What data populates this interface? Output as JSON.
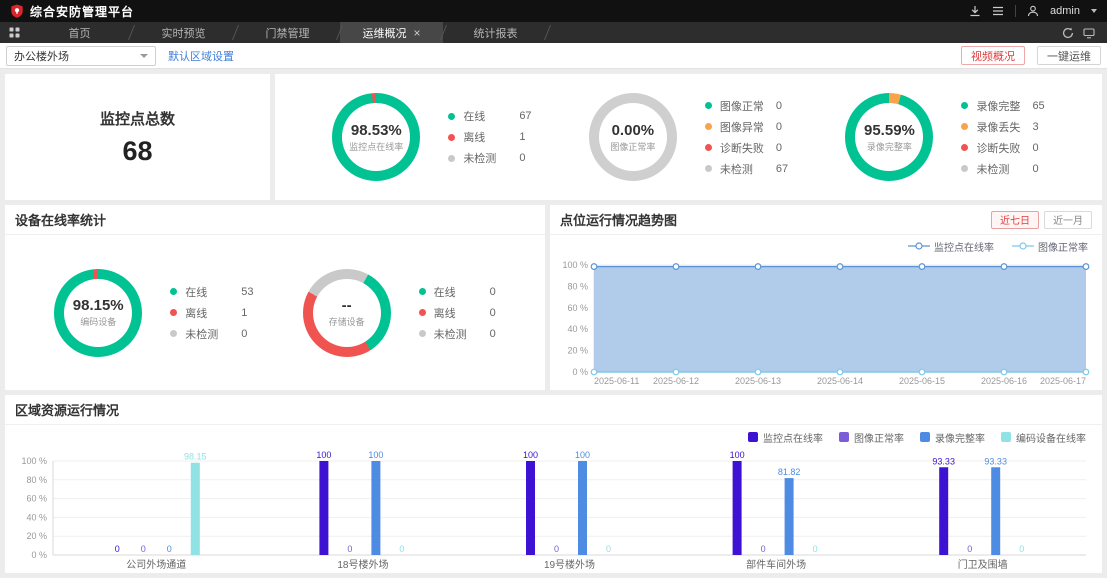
{
  "app": {
    "title": "综合安防管理平台",
    "user": "admin"
  },
  "tabbar": {
    "tabs": [
      {
        "id": "home",
        "label": "首页",
        "active": false,
        "closable": false
      },
      {
        "id": "live-preview",
        "label": "实时预览",
        "active": false,
        "closable": false
      },
      {
        "id": "access-control",
        "label": "门禁管理",
        "active": false,
        "closable": false
      },
      {
        "id": "ops-overview",
        "label": "运维概况",
        "active": true,
        "closable": true
      },
      {
        "id": "stats-report",
        "label": "统计报表",
        "active": false,
        "closable": false
      }
    ]
  },
  "toolbar": {
    "area_select": "办公楼外场",
    "default_area_link": "默认区域设置",
    "video_overview_button": "视频概况",
    "one_key_ops_button": "一键运维"
  },
  "summary": {
    "total_label": "监控点总数",
    "total_value": "68"
  },
  "colors": {
    "green": "#00C292",
    "red": "#F05450",
    "orange": "#F8A44C",
    "gray": "#C9C9C9",
    "accent_red": "#E23C3C",
    "link_blue": "#3D7EDB"
  },
  "overview_donuts": [
    {
      "id": "monitor-online-rate",
      "percent": "98.53%",
      "label": "监控点在线率",
      "segments": [
        {
          "color": "#00C292",
          "pct": 98.53
        },
        {
          "color": "#F05450",
          "pct": 1.47
        }
      ],
      "legend": [
        {
          "dot": "#00C292",
          "label": "在线",
          "value": "67"
        },
        {
          "dot": "#F05450",
          "label": "离线",
          "value": "1"
        },
        {
          "dot": "#C9C9C9",
          "label": "未检测",
          "value": "0"
        }
      ]
    },
    {
      "id": "image-normal-rate",
      "percent": "0.00%",
      "label": "图像正常率",
      "segments": [
        {
          "color": "#CFCFCF",
          "pct": 100
        }
      ],
      "legend": [
        {
          "dot": "#00C292",
          "label": "图像正常",
          "value": "0"
        },
        {
          "dot": "#F8A44C",
          "label": "图像异常",
          "value": "0"
        },
        {
          "dot": "#F05450",
          "label": "诊断失败",
          "value": "0"
        },
        {
          "dot": "#C9C9C9",
          "label": "未检测",
          "value": "67"
        }
      ]
    },
    {
      "id": "recording-integrity-rate",
      "percent": "95.59%",
      "label": "录像完整率",
      "segments": [
        {
          "color": "#F8A44C",
          "pct": 4.41
        },
        {
          "color": "#00C292",
          "pct": 95.59
        }
      ],
      "legend": [
        {
          "dot": "#00C292",
          "label": "录像完整",
          "value": "65"
        },
        {
          "dot": "#F8A44C",
          "label": "录像丢失",
          "value": "3"
        },
        {
          "dot": "#F05450",
          "label": "诊断失败",
          "value": "0"
        },
        {
          "dot": "#C9C9C9",
          "label": "未检测",
          "value": "0"
        }
      ]
    }
  ],
  "device_panel": {
    "title": "设备在线率统计",
    "donuts": [
      {
        "id": "encoding-device",
        "percent": "98.15%",
        "label": "编码设备",
        "segments": [
          {
            "color": "#00C292",
            "pct": 98.15
          },
          {
            "color": "#F05450",
            "pct": 1.85
          }
        ],
        "legend": [
          {
            "dot": "#00C292",
            "label": "在线",
            "value": "53"
          },
          {
            "dot": "#F05450",
            "label": "离线",
            "value": "1"
          },
          {
            "dot": "#C9C9C9",
            "label": "未检测",
            "value": "0"
          }
        ]
      },
      {
        "id": "storage-device",
        "percent": "--",
        "label": "存储设备",
        "segments": [
          {
            "color": "#C9C9C9",
            "pct": 8
          },
          {
            "color": "#00C292",
            "pct": 33
          },
          {
            "color": "#F05450",
            "pct": 42
          },
          {
            "color": "#C9C9C9",
            "pct": 17
          }
        ],
        "legend": [
          {
            "dot": "#00C292",
            "label": "在线",
            "value": "0"
          },
          {
            "dot": "#F05450",
            "label": "离线",
            "value": "0"
          },
          {
            "dot": "#C9C9C9",
            "label": "未检测",
            "value": "0"
          }
        ]
      }
    ]
  },
  "chart_data": [
    {
      "id": "trend",
      "type": "line",
      "title": "点位运行情况趋势图",
      "range_buttons": [
        "近七日",
        "近一月"
      ],
      "active_range": "近七日",
      "x": [
        "2025-06-11",
        "2025-06-12",
        "2025-06-13",
        "2025-06-14",
        "2025-06-15",
        "2025-06-16",
        "2025-06-17"
      ],
      "series": [
        {
          "name": "监控点在线率",
          "color": "#5B93D8",
          "fill": "#A9C7E9",
          "values": [
            98.53,
            98.53,
            98.53,
            98.53,
            98.53,
            98.53,
            98.53
          ]
        },
        {
          "name": "图像正常率",
          "color": "#7EC8EA",
          "fill": "none",
          "values": [
            0,
            0,
            0,
            0,
            0,
            0,
            0
          ]
        }
      ],
      "ylim": [
        0,
        100
      ],
      "yticks": [
        0,
        20,
        40,
        60,
        80,
        100
      ],
      "ytick_suffix": " %",
      "legend_position": "top-right",
      "grid": true
    },
    {
      "id": "region",
      "type": "bar",
      "title": "区域资源运行情况",
      "categories": [
        "公司外场通道",
        "18号楼外场",
        "19号楼外场",
        "部件车间外场",
        "门卫及围墙"
      ],
      "series": [
        {
          "name": "监控点在线率",
          "color": "#3D12D2",
          "values": [
            0,
            100,
            100,
            100,
            93.33
          ]
        },
        {
          "name": "图像正常率",
          "color": "#7B5BD6",
          "values": [
            0,
            0,
            0,
            0,
            0
          ]
        },
        {
          "name": "录像完整率",
          "color": "#4E8CE4",
          "values": [
            0,
            100,
            100,
            81.82,
            93.33
          ]
        },
        {
          "name": "编码设备在线率",
          "color": "#90E2E4",
          "values": [
            98.15,
            0,
            0,
            0,
            0
          ]
        }
      ],
      "ylim": [
        0,
        100
      ],
      "yticks": [
        0,
        20,
        40,
        60,
        80,
        100
      ],
      "ytick_suffix": " %",
      "legend_position": "top-right",
      "grid": true
    }
  ]
}
